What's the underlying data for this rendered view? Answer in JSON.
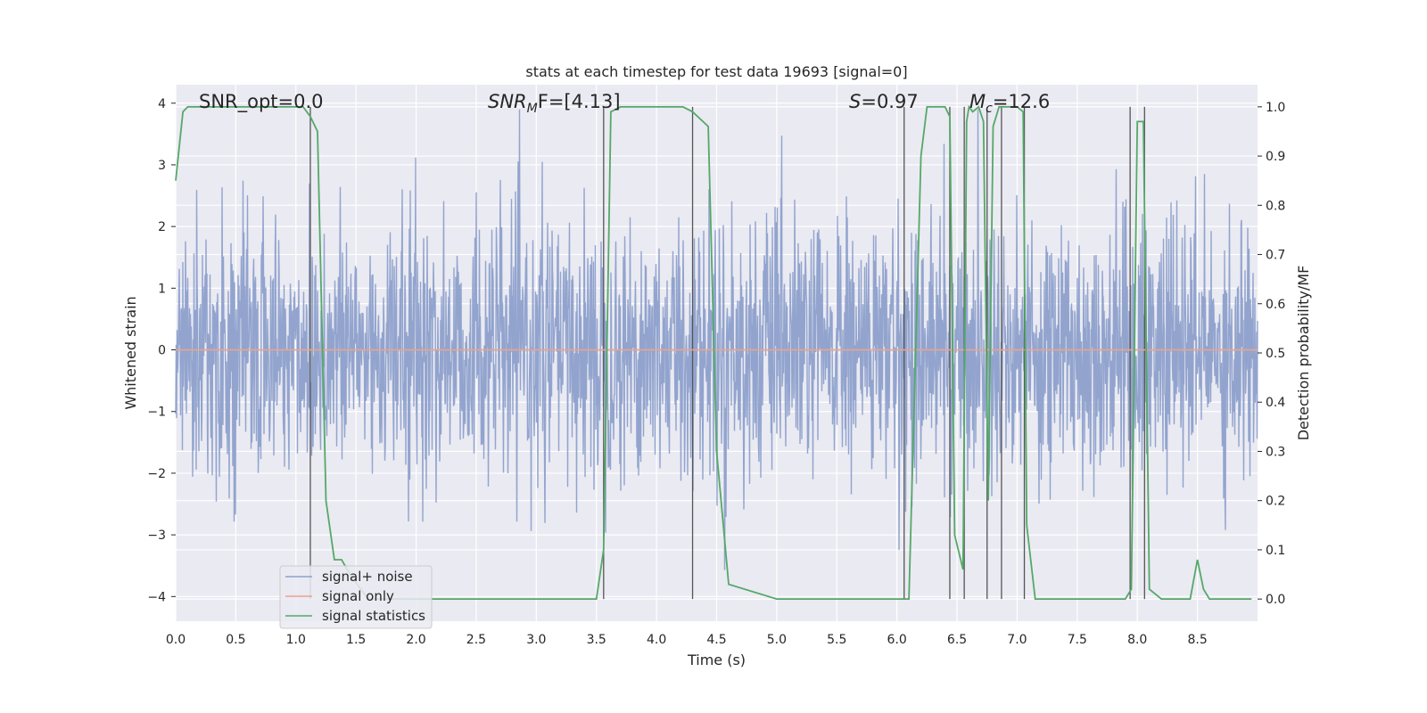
{
  "chart_data": {
    "type": "line",
    "title": "stats at each timestep for test data 19693 [signal=0]",
    "xlabel": "Time (s)",
    "ylabel_left": "Whitened strain",
    "ylabel_right": "Detection probability/MF",
    "xlim": [
      0.0,
      9.0
    ],
    "ylim_left": [
      -4.4,
      4.3
    ],
    "ylim_right": [
      -0.045,
      1.045
    ],
    "x_ticks": [
      "0.0",
      "0.5",
      "1.0",
      "1.5",
      "2.0",
      "2.5",
      "3.0",
      "3.5",
      "4.0",
      "4.5",
      "5.0",
      "5.5",
      "6.0",
      "6.5",
      "7.0",
      "7.5",
      "8.0",
      "8.5"
    ],
    "y_ticks_left": [
      "4",
      "3",
      "2",
      "1",
      "0",
      "−1",
      "−2",
      "−3",
      "−4"
    ],
    "y_ticks_right": [
      "1.0",
      "0.9",
      "0.8",
      "0.7",
      "0.6",
      "0.5",
      "0.4",
      "0.3",
      "0.2",
      "0.1",
      "0.0"
    ],
    "grid": true,
    "legend_position": "lower-left",
    "annotations": {
      "snr_opt": "SNR_opt=0.0",
      "snr_mf_sym": "SNR",
      "snr_mf_sub": "M",
      "snr_mf_tail": "F=[4.13]",
      "s_sym": "S",
      "s_val": "=0.97",
      "mc_sym": "M",
      "mc_sub": "c",
      "mc_val": "=12.6"
    },
    "series": [
      {
        "name": "signal+ noise",
        "color": "#8da0cb",
        "kind": "noise",
        "axis": "left",
        "amplitude_envelope": [
          -3.8,
          3.9
        ]
      },
      {
        "name": "signal only",
        "color": "#e8a48c",
        "axis": "left",
        "x": [
          0.0,
          9.0
        ],
        "y": [
          0.0,
          0.0
        ]
      },
      {
        "name": "signal statistics",
        "color": "#55a868",
        "axis": "right",
        "x": [
          0.0,
          0.06,
          0.1,
          0.2,
          0.4,
          0.6,
          0.8,
          1.0,
          1.06,
          1.12,
          1.18,
          1.25,
          1.32,
          1.38,
          1.45,
          1.6,
          2.0,
          2.5,
          3.0,
          3.3,
          3.5,
          3.56,
          3.62,
          3.7,
          4.0,
          4.22,
          4.3,
          4.43,
          4.5,
          4.6,
          5.0,
          5.5,
          6.05,
          6.1,
          6.2,
          6.25,
          6.3,
          6.4,
          6.44,
          6.48,
          6.55,
          6.58,
          6.6,
          6.63,
          6.68,
          6.72,
          6.76,
          6.8,
          6.85,
          6.9,
          7.0,
          7.05,
          7.08,
          7.15,
          7.2,
          7.3,
          7.5,
          7.8,
          7.9,
          7.95,
          8.0,
          8.05,
          8.1,
          8.2,
          8.3,
          8.44,
          8.5,
          8.55,
          8.6,
          8.7,
          8.95
        ],
        "y": [
          0.85,
          0.99,
          1.0,
          1.0,
          1.0,
          1.0,
          1.0,
          1.0,
          1.0,
          0.98,
          0.95,
          0.2,
          0.08,
          0.08,
          0.05,
          0.0,
          0.0,
          0.0,
          0.0,
          0.0,
          0.0,
          0.1,
          0.99,
          1.0,
          1.0,
          1.0,
          0.99,
          0.96,
          0.3,
          0.03,
          0.0,
          0.0,
          0.0,
          0.0,
          0.9,
          1.0,
          1.0,
          1.0,
          0.98,
          0.13,
          0.06,
          0.97,
          1.0,
          0.99,
          1.0,
          0.97,
          0.2,
          0.96,
          1.0,
          1.0,
          1.0,
          0.99,
          0.15,
          0.0,
          0.0,
          0.0,
          0.0,
          0.0,
          0.0,
          0.02,
          0.97,
          0.97,
          0.02,
          0.0,
          0.0,
          0.0,
          0.08,
          0.02,
          0.0,
          0.0,
          0.0
        ]
      }
    ],
    "vertical_markers_x": [
      1.12,
      3.56,
      4.3,
      6.06,
      6.44,
      6.56,
      6.75,
      6.87,
      7.06,
      7.94,
      8.06
    ]
  }
}
